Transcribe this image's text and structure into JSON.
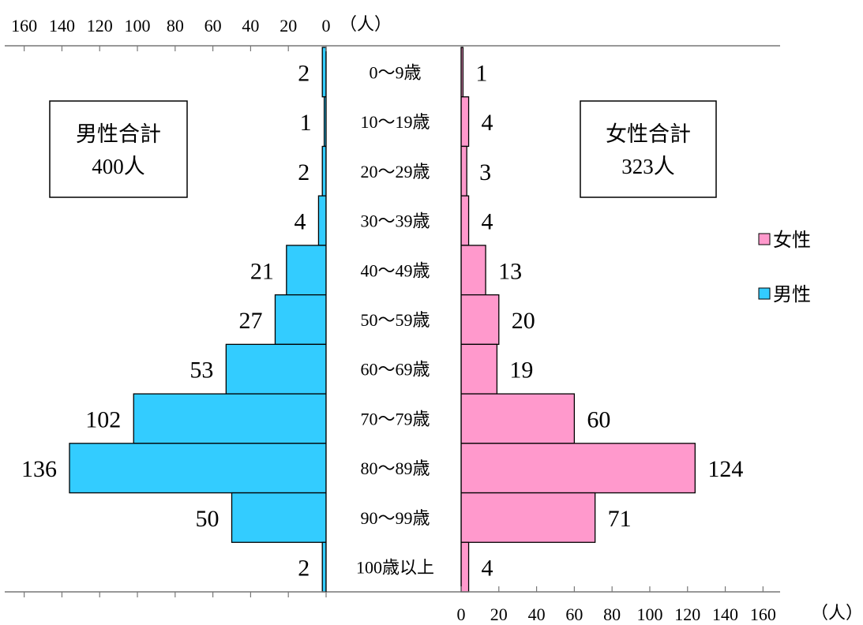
{
  "chart_data": {
    "type": "bar",
    "orientation": "horizontal-population-pyramid",
    "categories": [
      "0～9歳",
      "10～19歳",
      "20～29歳",
      "30～39歳",
      "40～49歳",
      "50～59歳",
      "60～69歳",
      "70～79歳",
      "80～89歳",
      "90～99歳",
      "100歳以上"
    ],
    "series": [
      {
        "name": "男性",
        "color": "#33ccff",
        "side": "left",
        "values": [
          2,
          1,
          2,
          4,
          21,
          27,
          53,
          102,
          136,
          50,
          2
        ]
      },
      {
        "name": "女性",
        "color": "#ff99cc",
        "side": "right",
        "values": [
          1,
          4,
          3,
          4,
          13,
          20,
          19,
          60,
          124,
          71,
          4
        ]
      }
    ],
    "axis_ticks_top": [
      "160",
      "140",
      "120",
      "100",
      "80",
      "60",
      "40",
      "20",
      "0"
    ],
    "axis_ticks_bottom": [
      "0",
      "20",
      "40",
      "60",
      "80",
      "100",
      "120",
      "140",
      "160"
    ],
    "axis_unit": "（人）",
    "xlim": [
      0,
      160
    ],
    "legend": {
      "position": "right",
      "items": [
        {
          "label": "女性",
          "color": "#ff99cc"
        },
        {
          "label": "男性",
          "color": "#33ccff"
        }
      ]
    },
    "totals": {
      "male": {
        "label": "男性合計",
        "value": "400人"
      },
      "female": {
        "label": "女性合計",
        "value": "323人"
      }
    }
  }
}
